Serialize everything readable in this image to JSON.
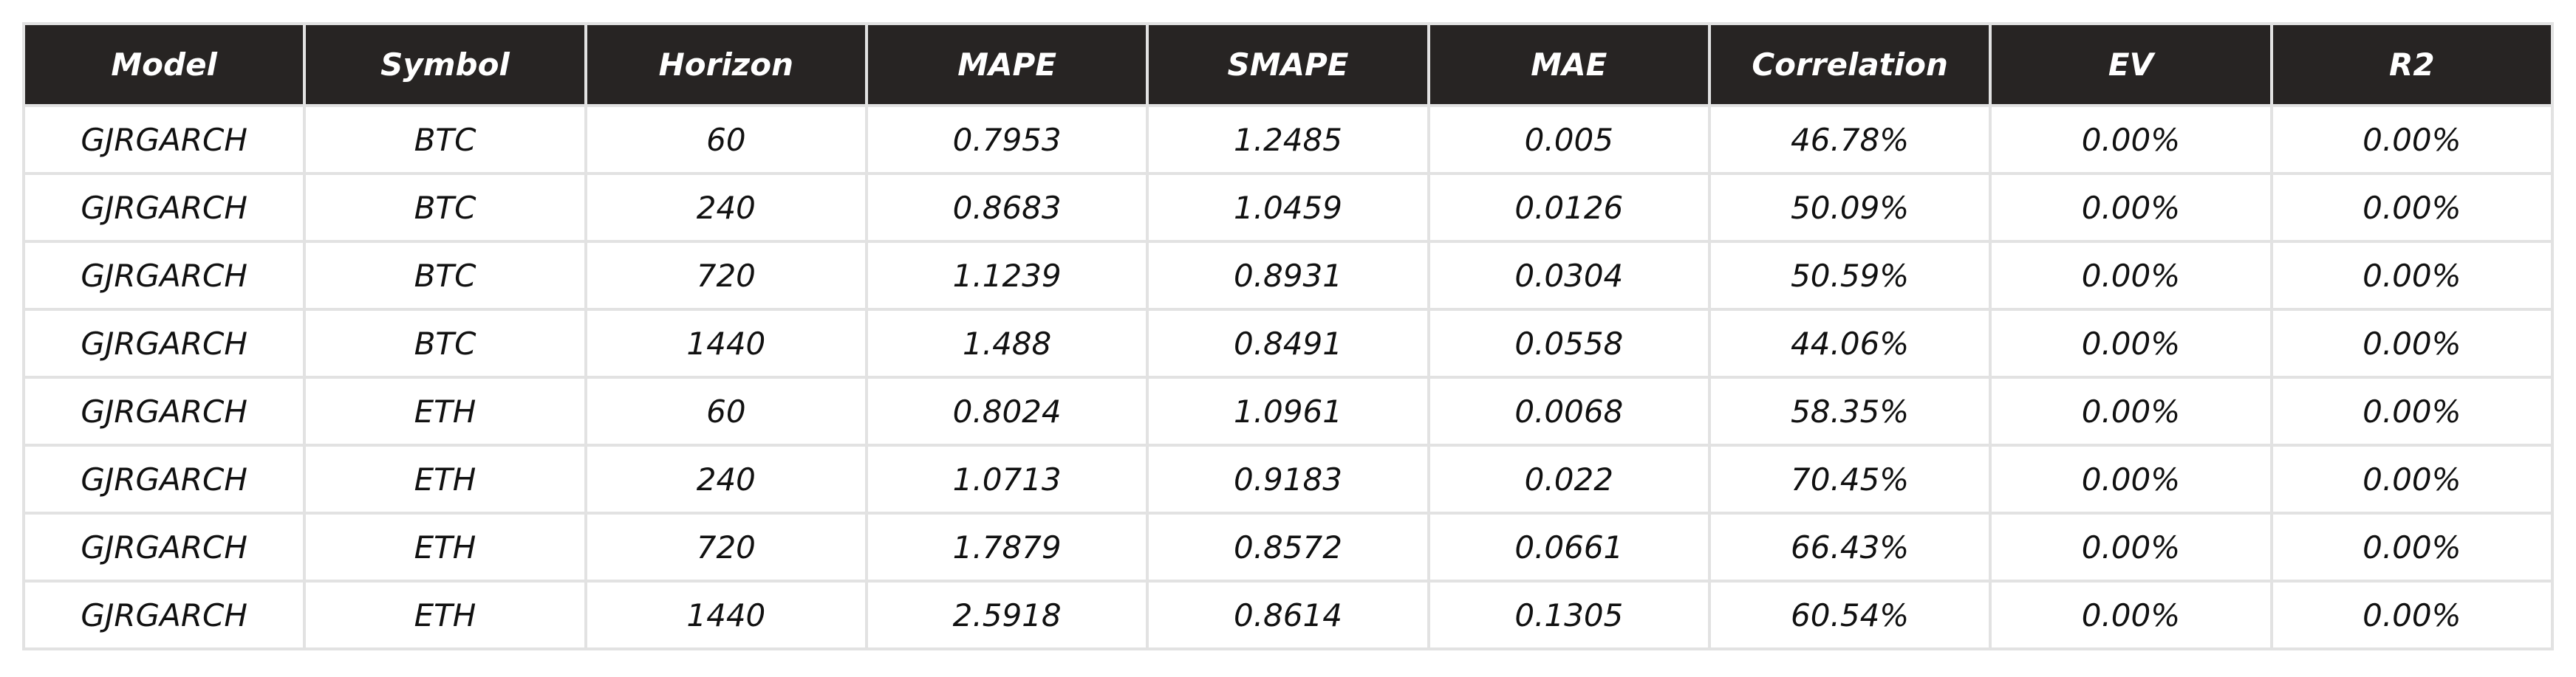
{
  "chart_data": {
    "type": "table",
    "columns": [
      "Model",
      "Symbol",
      "Horizon",
      "MAPE",
      "SMAPE",
      "MAE",
      "Correlation",
      "EV",
      "R2"
    ],
    "rows": [
      [
        "GJRGARCH",
        "BTC",
        "60",
        "0.7953",
        "1.2485",
        "0.005",
        "46.78%",
        "0.00%",
        "0.00%"
      ],
      [
        "GJRGARCH",
        "BTC",
        "240",
        "0.8683",
        "1.0459",
        "0.0126",
        "50.09%",
        "0.00%",
        "0.00%"
      ],
      [
        "GJRGARCH",
        "BTC",
        "720",
        "1.1239",
        "0.8931",
        "0.0304",
        "50.59%",
        "0.00%",
        "0.00%"
      ],
      [
        "GJRGARCH",
        "BTC",
        "1440",
        "1.488",
        "0.8491",
        "0.0558",
        "44.06%",
        "0.00%",
        "0.00%"
      ],
      [
        "GJRGARCH",
        "ETH",
        "60",
        "0.8024",
        "1.0961",
        "0.0068",
        "58.35%",
        "0.00%",
        "0.00%"
      ],
      [
        "GJRGARCH",
        "ETH",
        "240",
        "1.0713",
        "0.9183",
        "0.022",
        "70.45%",
        "0.00%",
        "0.00%"
      ],
      [
        "GJRGARCH",
        "ETH",
        "720",
        "1.7879",
        "0.8572",
        "0.0661",
        "66.43%",
        "0.00%",
        "0.00%"
      ],
      [
        "GJRGARCH",
        "ETH",
        "1440",
        "2.5918",
        "0.8614",
        "0.1305",
        "60.54%",
        "0.00%",
        "0.00%"
      ]
    ],
    "colors": {
      "header_bg": "#272423",
      "header_text": "#ffffff",
      "cell_text": "#111111",
      "grid": "#e2e2e2"
    }
  }
}
